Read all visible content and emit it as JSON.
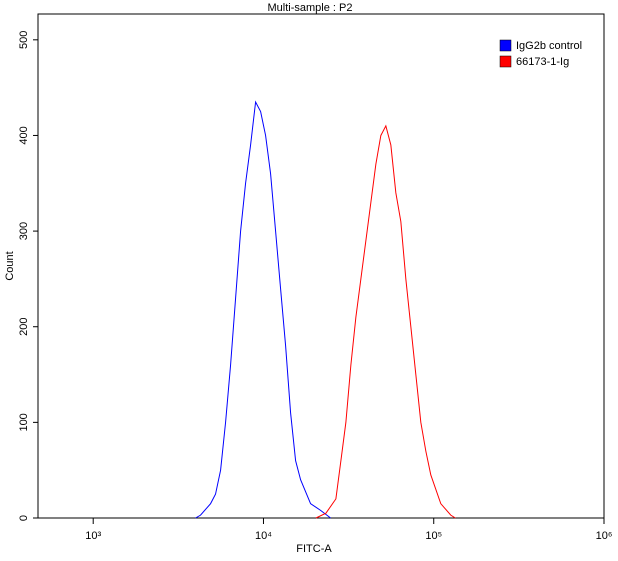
{
  "chart_data": {
    "type": "line",
    "title": "Multi-sample : P2",
    "x_label": "FITC-A",
    "y_label": "Count",
    "x_scale": "log",
    "xlim": [
      474,
      1000000
    ],
    "ylim": [
      0,
      527
    ],
    "xticks": [
      {
        "value": 1000,
        "label": "10³"
      },
      {
        "value": 10000,
        "label": "10⁴"
      },
      {
        "value": 100000,
        "label": "10⁵"
      },
      {
        "value": 1000000,
        "label": "10⁶"
      }
    ],
    "yticks": [
      0,
      100,
      200,
      300,
      400,
      500
    ],
    "legend": "top-right",
    "series": [
      {
        "name": "IgG2b control",
        "color": "#0000ff",
        "x": [
          3990,
          4270,
          4890,
          5230,
          5600,
          5990,
          6410,
          6860,
          7340,
          7850,
          8400,
          8990,
          9620,
          10290,
          11010,
          11780,
          12600,
          13490,
          14430,
          15440,
          16520,
          18910,
          21650,
          24790
        ],
        "values": [
          0,
          3,
          15,
          25,
          50,
          100,
          160,
          230,
          300,
          350,
          390,
          435,
          425,
          400,
          360,
          300,
          240,
          180,
          110,
          60,
          40,
          15,
          8,
          0
        ]
      },
      {
        "name": "66173-1-Ig",
        "color": "#ff0000",
        "x": [
          20330,
          23270,
          26630,
          28500,
          30480,
          32610,
          34890,
          37330,
          39940,
          42730,
          45720,
          48910,
          52330,
          55990,
          59900,
          64090,
          68570,
          73370,
          78500,
          83980,
          89850,
          96130,
          110000,
          125900,
          134000
        ],
        "values": [
          0,
          5,
          20,
          60,
          100,
          160,
          210,
          250,
          290,
          330,
          370,
          400,
          410,
          390,
          340,
          310,
          250,
          200,
          150,
          100,
          70,
          45,
          15,
          3,
          0
        ]
      }
    ]
  }
}
